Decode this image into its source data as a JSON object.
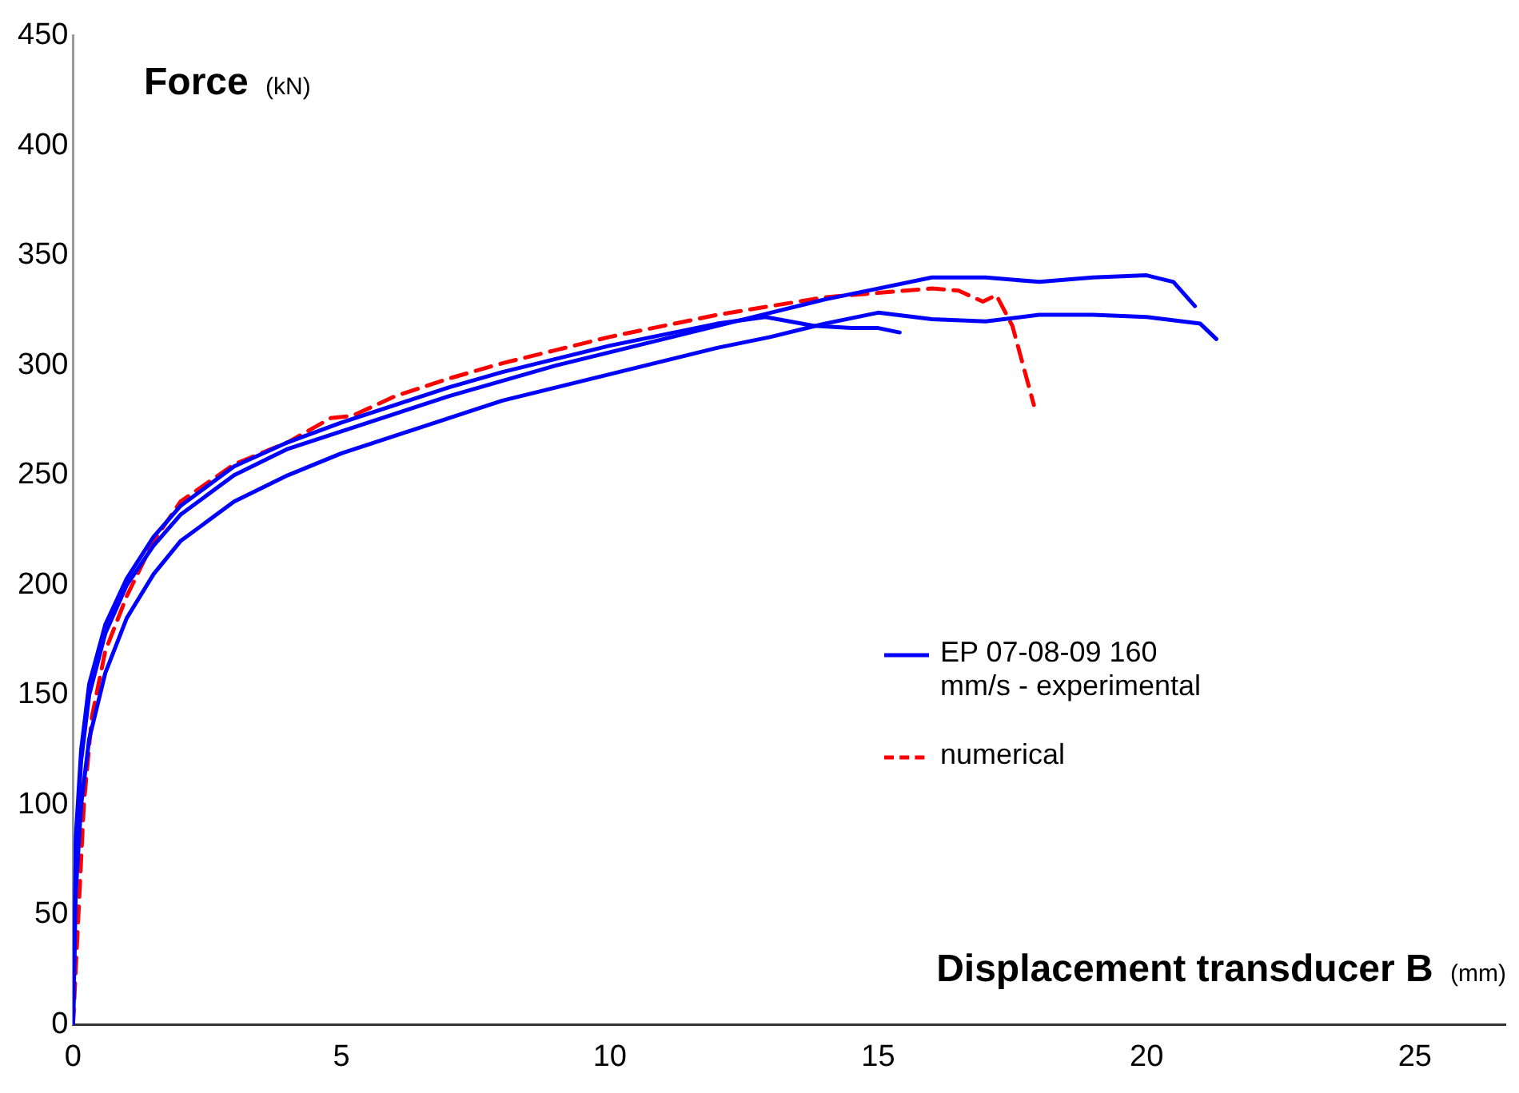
{
  "chart_data": {
    "type": "line",
    "xlabel": "Displacement transducer B (mm)",
    "ylabel": "Force (kN)",
    "xlim": [
      0,
      26.7
    ],
    "xticks": [
      0,
      5,
      10,
      15,
      20,
      25
    ],
    "ylim": [
      0,
      450
    ],
    "yticks": [
      0,
      50,
      100,
      150,
      200,
      250,
      300,
      350,
      400,
      450
    ],
    "grid": false,
    "legend": "right",
    "marker": "none",
    "series": [
      {
        "name": "EP 07-08-09 160 mm/s - experimental",
        "color": "#0000ff",
        "line_style": "solid",
        "x": [
          0,
          0.05,
          0.15,
          0.3,
          0.6,
          1,
          1.5,
          2,
          3,
          4,
          5,
          6,
          7,
          8,
          9,
          10,
          11,
          12,
          13,
          14,
          15,
          16,
          17,
          18,
          19,
          20,
          20.5,
          20.9
        ],
        "values": [
          0,
          80,
          120,
          150,
          178,
          200,
          218,
          232,
          250,
          262,
          270,
          278,
          286,
          293,
          300,
          306,
          312,
          318,
          324,
          330,
          335,
          340,
          340,
          338,
          340,
          341,
          338,
          327
        ]
      },
      {
        "color": "#0000ff",
        "line_style": "solid",
        "x": [
          0,
          0.05,
          0.15,
          0.3,
          0.6,
          1,
          1.5,
          2,
          3,
          4,
          5,
          6,
          7,
          8,
          9,
          10,
          11,
          12,
          13,
          14,
          15,
          16,
          17,
          18,
          19,
          20,
          21,
          21.3
        ],
        "values": [
          0,
          60,
          100,
          130,
          160,
          185,
          205,
          220,
          238,
          250,
          260,
          268,
          276,
          284,
          290,
          296,
          302,
          308,
          313,
          319,
          324,
          321,
          320,
          323,
          323,
          322,
          319,
          312
        ]
      },
      {
        "color": "#0000ff",
        "line_style": "solid",
        "x": [
          0,
          0.05,
          0.15,
          0.3,
          0.6,
          1,
          1.5,
          2,
          3,
          4,
          5,
          6,
          7,
          8,
          9,
          10,
          11,
          12,
          12.9,
          13.8,
          14.5,
          15,
          15.4
        ],
        "values": [
          0,
          85,
          125,
          155,
          182,
          203,
          222,
          236,
          254,
          265,
          274,
          282,
          290,
          297,
          303,
          309,
          314,
          319,
          322,
          318,
          317,
          317,
          315
        ]
      },
      {
        "name": "numerical",
        "color": "#ff0000",
        "line_style": "dashed",
        "x": [
          0,
          0.1,
          0.2,
          0.35,
          0.6,
          1,
          1.5,
          2,
          3,
          4,
          4.8,
          5.2,
          6,
          7,
          8,
          9,
          10,
          11,
          12,
          13,
          14,
          15,
          16,
          16.5,
          16.95,
          17.2,
          17.5,
          17.9
        ],
        "values": [
          0,
          50,
          100,
          140,
          170,
          195,
          220,
          238,
          255,
          265,
          276,
          277,
          286,
          294,
          301,
          307,
          313,
          318,
          323,
          327,
          331,
          333,
          335,
          334,
          329,
          332,
          318,
          282
        ]
      }
    ]
  }
}
